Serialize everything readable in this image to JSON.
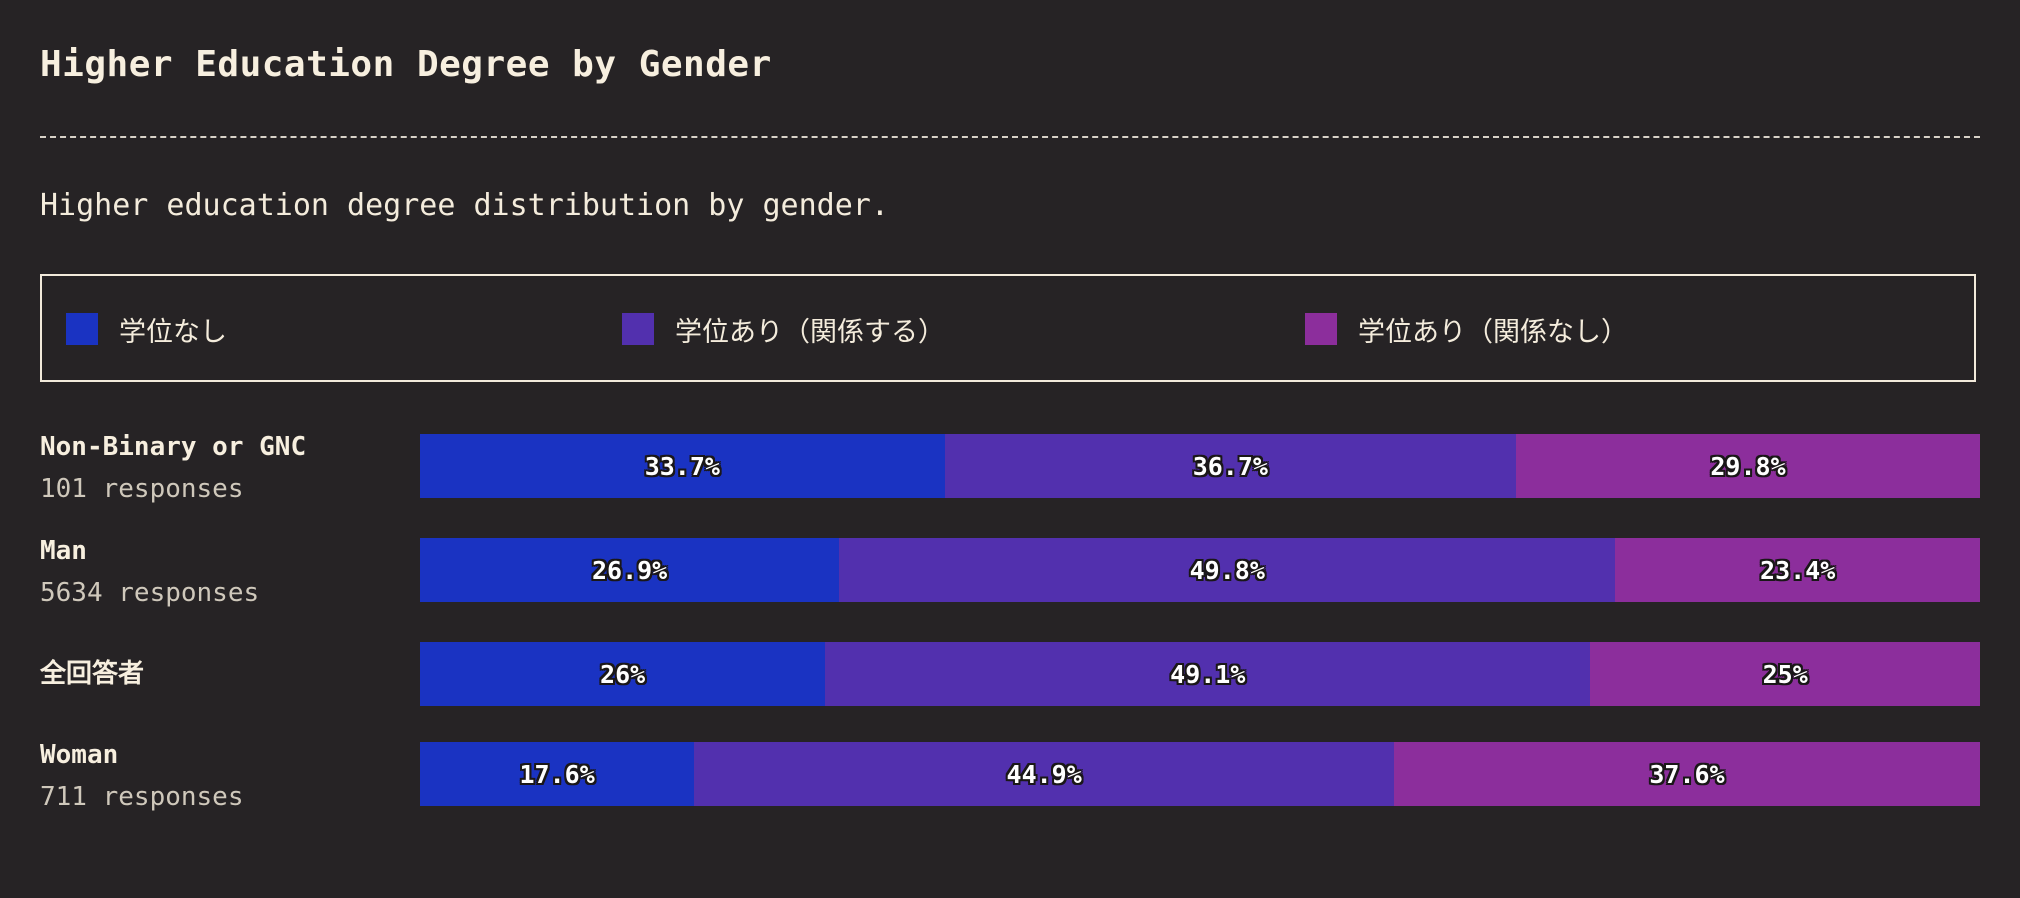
{
  "title": "Higher Education Degree by Gender",
  "subtitle": "Higher education degree distribution by gender.",
  "colors": {
    "background": "#262325",
    "no_degree": "#1a33c2",
    "degree_related": "#5230ae",
    "degree_unrelated": "#8c2e9c"
  },
  "legend": [
    {
      "label": "学位なし",
      "color": "#1a33c2"
    },
    {
      "label": "学位あり（関係する）",
      "color": "#5230ae"
    },
    {
      "label": "学位あり（関係なし）",
      "color": "#8c2e9c"
    }
  ],
  "rows": [
    {
      "name": "Non-Binary or GNC",
      "responses": "101 responses"
    },
    {
      "name": "Man",
      "responses": "5634 responses"
    },
    {
      "name": "全回答者",
      "responses": ""
    },
    {
      "name": "Woman",
      "responses": "711 responses"
    }
  ],
  "chart_data": {
    "type": "bar",
    "orientation": "horizontal",
    "stacked": true,
    "normalized": true,
    "categories": [
      "Non-Binary or GNC",
      "Man",
      "全回答者",
      "Woman"
    ],
    "series": [
      {
        "name": "学位なし",
        "values": [
          33.7,
          26.9,
          26,
          17.6
        ],
        "labels": [
          "33.7%",
          "26.9%",
          "26%",
          "17.6%"
        ]
      },
      {
        "name": "学位あり（関係する）",
        "values": [
          36.7,
          49.8,
          49.1,
          44.9
        ],
        "labels": [
          "36.7%",
          "49.8%",
          "49.1%",
          "44.9%"
        ]
      },
      {
        "name": "学位あり（関係なし）",
        "values": [
          29.8,
          23.4,
          25,
          37.6
        ],
        "labels": [
          "29.8%",
          "23.4%",
          "25%",
          "37.6%"
        ]
      }
    ],
    "title": "Higher Education Degree by Gender",
    "xlim": [
      0,
      100
    ],
    "grid": false,
    "legend": "top"
  }
}
